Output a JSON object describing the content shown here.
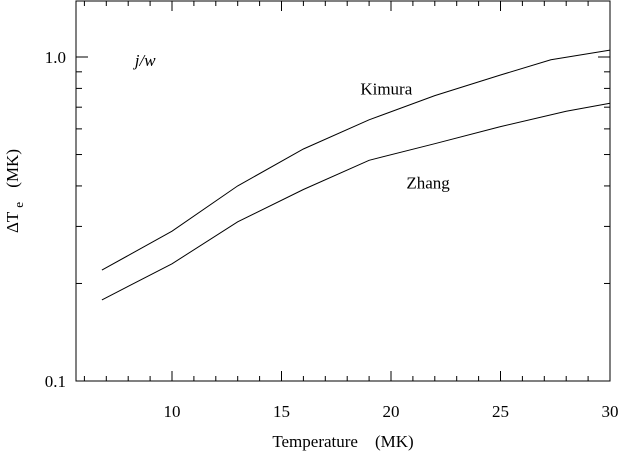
{
  "chart_data": {
    "type": "line",
    "title": "",
    "xlabel": "Temperature    (MK)",
    "ylabel_main": "ΔT",
    "ylabel_sub": "e",
    "ylabel_unit": "(MK)",
    "xlim": [
      4,
      30
    ],
    "ylim": [
      0.1,
      1.3
    ],
    "yscale": "log",
    "grid": false,
    "x_ticks": [
      10,
      15,
      20,
      25,
      30
    ],
    "x_tick_labels": [
      "10",
      "15",
      "20",
      "25",
      "30"
    ],
    "y_ticks": [
      0.1,
      1.0
    ],
    "y_tick_labels": [
      "0.1",
      "1.0"
    ],
    "annotations": [
      {
        "text": "j/w",
        "x": 8.3,
        "y": 0.98,
        "italic": true
      },
      {
        "text": "Kimura",
        "x": 18.6,
        "y": 0.8,
        "italic": false
      },
      {
        "text": "Zhang",
        "x": 20.7,
        "y": 0.41,
        "italic": false
      }
    ],
    "series": [
      {
        "x": [
          6.8,
          10,
          13,
          16,
          19,
          22,
          25,
          27.3,
          30
        ],
        "values": [
          0.22,
          0.29,
          0.4,
          0.52,
          0.64,
          0.76,
          0.88,
          0.98,
          1.05
        ]
      },
      {
        "x": [
          6.8,
          10,
          13,
          16,
          19,
          22,
          25,
          28,
          30
        ],
        "values": [
          0.178,
          0.23,
          0.31,
          0.39,
          0.48,
          0.54,
          0.61,
          0.68,
          0.72
        ]
      }
    ]
  }
}
